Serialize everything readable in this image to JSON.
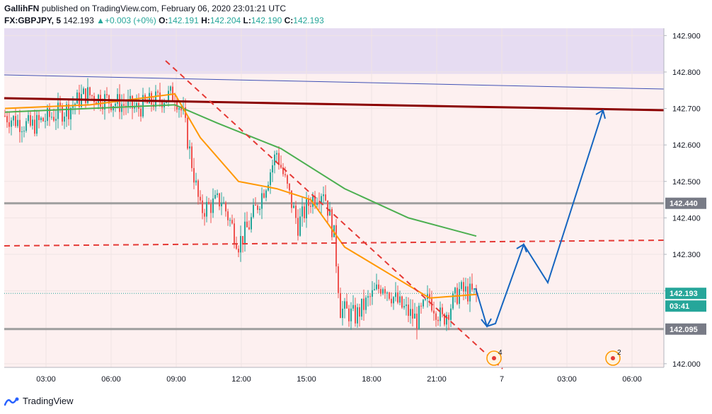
{
  "header": {
    "author": "GallihFN",
    "published": "published on TradingView.com, February 06, 2020 23:01:21 UTC",
    "symbol": "FX:GBPJPY, 5",
    "last": "142.193",
    "change": "+0.003 (+0%)",
    "o_label": "O:",
    "o": "142.191",
    "h_label": "H:",
    "h": "142.204",
    "l_label": "L:",
    "l": "142.190",
    "c_label": "C:",
    "c": "142.193"
  },
  "footer": {
    "brand": "TradingView"
  },
  "colors": {
    "up": "#26a69a",
    "down": "#ef5350",
    "support": "#9e9e9e",
    "resistance": "#8b0000",
    "channel": "#3f51b5",
    "ema_fast": "#ff9800",
    "ema_slow": "#4caf50",
    "projection": "#1565c0",
    "dashed": "#e53935",
    "zone_top": "#e6dcf2",
    "bg": "#fdf0f0"
  },
  "chart_data": {
    "type": "candlestick",
    "x_ticks": [
      "03:00",
      "06:00",
      "09:00",
      "12:00",
      "15:00",
      "18:00",
      "21:00",
      "7",
      "03:00",
      "06:00"
    ],
    "y_ticks": [
      "142.900",
      "142.800",
      "142.700",
      "142.600",
      "142.500",
      "142.400",
      "142.300",
      "142.200",
      "142.000"
    ],
    "ylim": [
      141.99,
      142.92
    ],
    "levels": [
      {
        "name": "support_upper",
        "value": 142.44,
        "label": "142.440"
      },
      {
        "name": "support_lower",
        "value": 142.095,
        "label": "142.095"
      }
    ],
    "current_price": {
      "label": "142.193",
      "countdown": "03:41",
      "value": 142.193
    },
    "event_markers": [
      {
        "label": "4"
      },
      {
        "label": "2"
      }
    ],
    "ohlc_anchor_path": [
      [
        0,
        142.68
      ],
      [
        12,
        142.65
      ],
      [
        22,
        142.68
      ],
      [
        30,
        142.7
      ],
      [
        38,
        142.74
      ],
      [
        50,
        142.72
      ],
      [
        62,
        142.7
      ],
      [
        70,
        142.72
      ],
      [
        80,
        142.74
      ],
      [
        84,
        142.68
      ],
      [
        92,
        142.42
      ],
      [
        102,
        142.45
      ],
      [
        110,
        142.33
      ],
      [
        115,
        142.38
      ],
      [
        122,
        142.48
      ],
      [
        128,
        142.58
      ],
      [
        132,
        142.5
      ],
      [
        138,
        142.38
      ],
      [
        144,
        142.45
      ],
      [
        150,
        142.48
      ],
      [
        155,
        142.35
      ],
      [
        158,
        142.15
      ],
      [
        165,
        142.13
      ],
      [
        172,
        142.18
      ],
      [
        178,
        142.22
      ],
      [
        186,
        142.16
      ],
      [
        194,
        142.12
      ],
      [
        200,
        142.18
      ],
      [
        206,
        142.12
      ],
      [
        214,
        142.2
      ],
      [
        222,
        142.19
      ]
    ],
    "ema_fast_path": [
      [
        0,
        142.7
      ],
      [
        40,
        142.71
      ],
      [
        80,
        142.74
      ],
      [
        92,
        142.62
      ],
      [
        110,
        142.5
      ],
      [
        128,
        142.48
      ],
      [
        144,
        142.45
      ],
      [
        160,
        142.32
      ],
      [
        180,
        142.25
      ],
      [
        200,
        142.18
      ],
      [
        222,
        142.19
      ]
    ],
    "ema_slow_path": [
      [
        0,
        142.69
      ],
      [
        40,
        142.7
      ],
      [
        80,
        142.71
      ],
      [
        100,
        142.66
      ],
      [
        130,
        142.59
      ],
      [
        160,
        142.48
      ],
      [
        190,
        142.4
      ],
      [
        222,
        142.35
      ]
    ]
  }
}
